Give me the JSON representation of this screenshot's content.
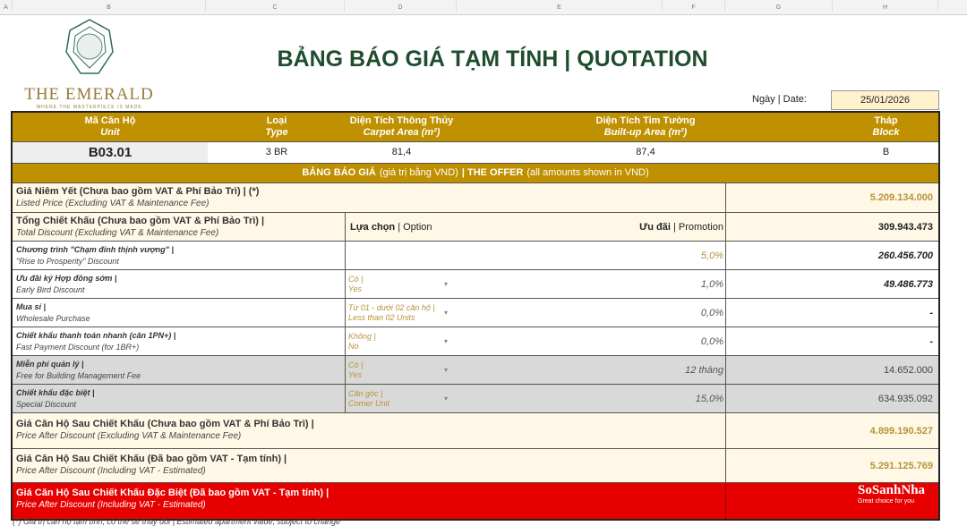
{
  "sheet": {
    "columns": [
      "A",
      "B",
      "C",
      "D",
      "E",
      "F",
      "G",
      "H"
    ]
  },
  "logo": {
    "name": "THE EMERALD",
    "tagline": "WHERE THE MASTERPIECE IS MADE"
  },
  "title": "BẢNG BÁO GIÁ TẠM TÍNH | QUOTATION",
  "date": {
    "label": "Ngày | Date:",
    "value": "25/01/2026"
  },
  "unit_header": [
    {
      "vi": "Mã Căn Hộ",
      "en": "Unit",
      "value": "B03.01"
    },
    {
      "vi": "Loại",
      "en": "Type",
      "value": "3 BR"
    },
    {
      "vi": "Diện Tích Thông Thủy",
      "en": "Carpet Area (m²)",
      "value": "81,4"
    },
    {
      "vi": "Diện Tích Tim Tường",
      "en": "Built-up Area (m²)",
      "value": "87,4"
    },
    {
      "vi": "Tháp",
      "en": "Block",
      "value": "B"
    }
  ],
  "offer_band": {
    "vi": "BẢNG BÁO GIÁ",
    "vi_note": "(giá trị bằng VND)",
    "en": "| THE OFFER",
    "en_note": "(all amounts shown in VND)"
  },
  "listed": {
    "vi": "Giá Niêm Yết (Chưa bao gồm VAT & Phí Bảo Trì) | (*)",
    "en": "Listed Price (Excluding VAT & Maintenance Fee)",
    "value": "5.209.134.000"
  },
  "total": {
    "vi": "Tổng Chiết Khấu (Chưa bao gồm VAT & Phí Bảo Trì) |",
    "en": "Total Discount (Excluding VAT & Maintenance Fee)",
    "option_vi": "Lựa chọn",
    "option_en": "| Option",
    "promo_vi": "Ưu đãi",
    "promo_en": "| Promotion",
    "value": "309.943.473"
  },
  "discounts": [
    {
      "vi": "Chương trình \"Chạm đỉnh thịnh vượng\" |",
      "en": "\"Rise to Prosperity\" Discount",
      "opt_vi": "",
      "opt_en": "",
      "pct": "5,0%",
      "value": "260.456.700",
      "shade": "white"
    },
    {
      "vi": "Ưu đãi ký Hợp đồng sớm |",
      "en": "Early Bird Discount",
      "opt_vi": "Có |",
      "opt_en": "Yes",
      "pct": "1,0%",
      "value": "49.486.773",
      "shade": "white"
    },
    {
      "vi": "Mua sỉ |",
      "en": "Wholesale Purchase",
      "opt_vi": "Từ 01 - dưới 02 căn hộ |",
      "opt_en": "Less than 02 Units",
      "pct": "0,0%",
      "value": "-",
      "shade": "white"
    },
    {
      "vi": "Chiết khấu thanh toán nhanh (căn 1PN+) |",
      "en": "Fast Payment Discount (for 1BR+)",
      "opt_vi": "Không |",
      "opt_en": "No",
      "pct": "0,0%",
      "value": "-",
      "shade": "white"
    },
    {
      "vi": "Miễn phí quản lý |",
      "en": "Free for Building Management Fee",
      "opt_vi": "Có |",
      "opt_en": "Yes",
      "pct": "12 tháng",
      "value": "14.652.000",
      "shade": "grey"
    },
    {
      "vi": "Chiết khấu đặc biệt |",
      "en": "Special Discount",
      "opt_vi": "Căn góc |",
      "opt_en": "Corner Unit",
      "pct": "15,0%",
      "value": "634.935.092",
      "shade": "grey"
    }
  ],
  "after_excl": {
    "vi": "Giá Căn Hộ Sau Chiết Khấu (Chưa bao gồm VAT & Phí Bảo Trì) |",
    "en": "Price After Discount (Excluding VAT & Maintenance Fee)",
    "value": "4.899.190.527"
  },
  "after_incl": {
    "vi": "Giá Căn Hộ Sau Chiết Khấu (Đã bao gồm VAT - Tạm tính) |",
    "en": "Price After Discount (Including VAT - Estimated)",
    "value": "5.291.125.769"
  },
  "after_special": {
    "vi": "Giá Căn Hộ Sau Chiết Khấu Đặc Biệt (Đã bao gồm VAT - Tạm tính) |",
    "en": "Price After Discount (Including VAT - Estimated)"
  },
  "footnote": "(*) Giá trị căn hộ tạm tính, có thể sẽ thay đổi | Estimated apartment value, subject to change",
  "watermark": {
    "name": "SoSanhNha",
    "tag": "Great choice for you"
  },
  "colors": {
    "gold": "#bf9000",
    "title_green": "#1f4d2e",
    "cream": "#fff8e6",
    "grey": "#d9d9d9",
    "red": "#e60000",
    "date_fill": "#fff2cc"
  }
}
